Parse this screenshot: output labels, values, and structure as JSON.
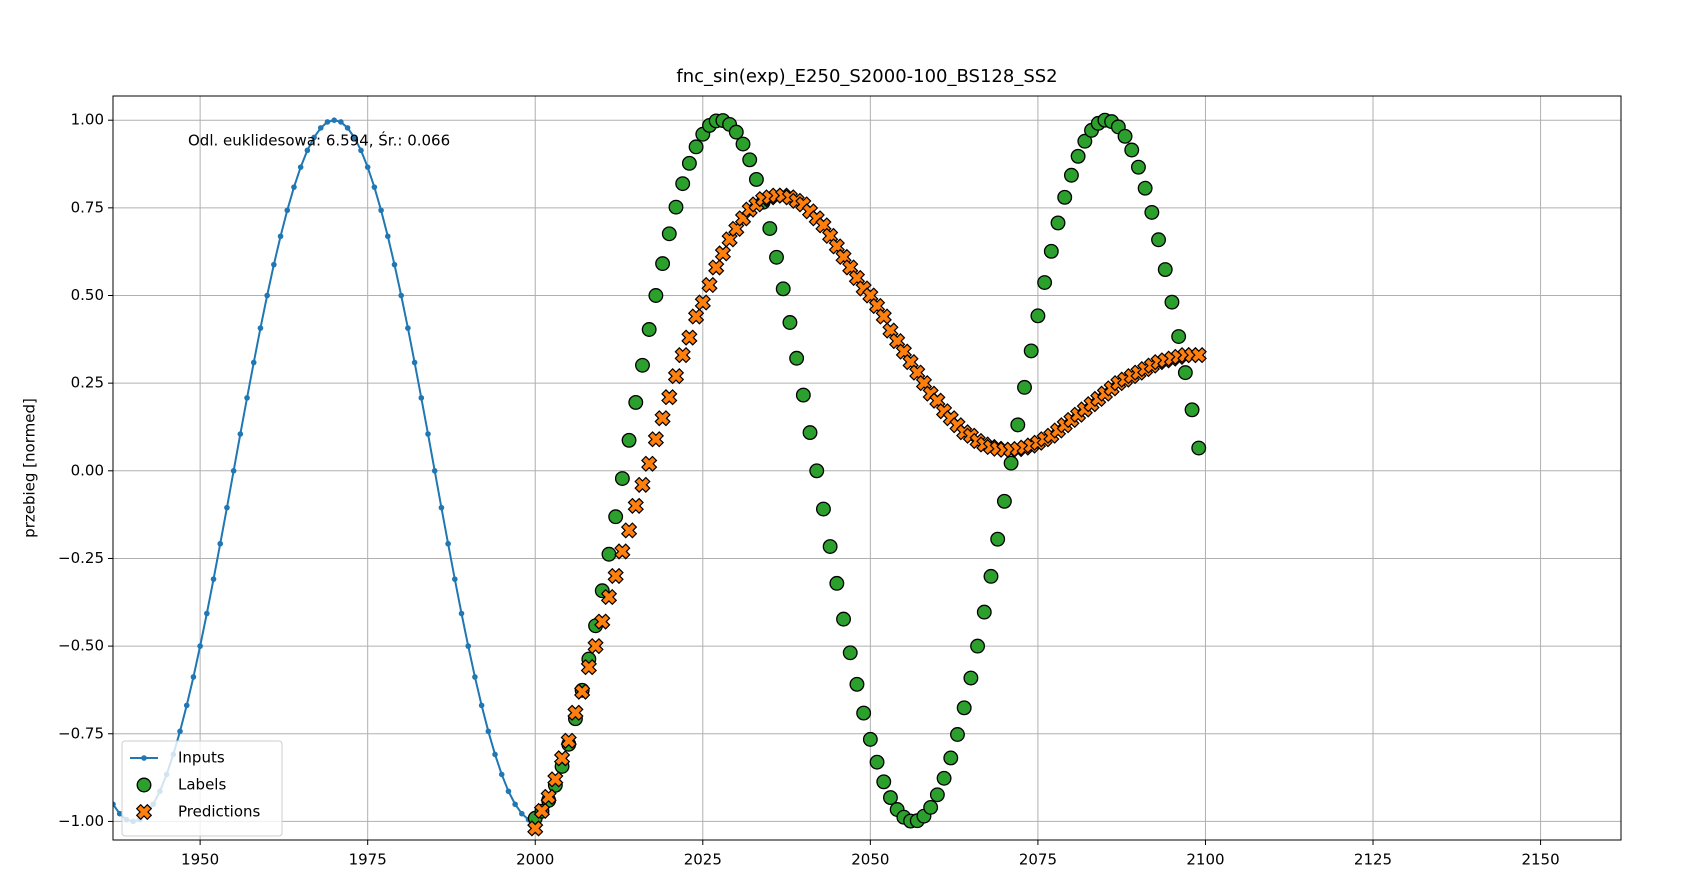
{
  "chart_data": {
    "type": "line",
    "title": "fnc_sin(exp)_E250_S2000-100_BS128_SS2",
    "ylabel": "przebieg [normed]",
    "annotation": "Odl. euklidesowa: 6.594, Śr.: 0.066",
    "xlim": [
      1937,
      2162
    ],
    "ylim": [
      -1.053,
      1.069
    ],
    "xticks": [
      1950,
      1975,
      2000,
      2025,
      2050,
      2075,
      2100,
      2125,
      2150
    ],
    "yticks": [
      {
        "value": -1,
        "label": "−1.00"
      },
      {
        "value": -0.75,
        "label": "−0.75"
      },
      {
        "value": -0.5,
        "label": "−0.50"
      },
      {
        "value": -0.25,
        "label": "−0.25"
      },
      {
        "value": 0,
        "label": "0.00"
      },
      {
        "value": 0.25,
        "label": "0.25"
      },
      {
        "value": 0.5,
        "label": "0.50"
      },
      {
        "value": 0.75,
        "label": "0.75"
      },
      {
        "value": 1,
        "label": "1.00"
      }
    ],
    "grid": true,
    "legend": "lower left",
    "series": [
      {
        "name": "Inputs",
        "color": "#1f77b4",
        "marker": "line",
        "x": [
          1937,
          1938,
          1939,
          1940,
          1941,
          1942,
          1943,
          1944,
          1945,
          1946,
          1947,
          1948,
          1949,
          1950,
          1951,
          1952,
          1953,
          1954,
          1955,
          1956,
          1957,
          1958,
          1959,
          1960,
          1961,
          1962,
          1963,
          1964,
          1965,
          1966,
          1967,
          1968,
          1969,
          1970,
          1971,
          1972,
          1973,
          1974,
          1975,
          1976,
          1977,
          1978,
          1979,
          1980,
          1981,
          1982,
          1983,
          1984,
          1985,
          1986,
          1987,
          1988,
          1989,
          1990,
          1991,
          1992,
          1993,
          1994,
          1995,
          1996,
          1997,
          1998,
          1999
        ],
        "values": [
          -0.951,
          -0.978,
          -0.995,
          -1,
          -0.995,
          -0.978,
          -0.951,
          -0.914,
          -0.866,
          -0.809,
          -0.743,
          -0.669,
          -0.588,
          -0.5,
          -0.407,
          -0.309,
          -0.208,
          -0.105,
          0,
          0.105,
          0.208,
          0.309,
          0.407,
          0.5,
          0.588,
          0.669,
          0.743,
          0.809,
          0.866,
          0.914,
          0.951,
          0.978,
          0.995,
          1,
          0.995,
          0.978,
          0.951,
          0.914,
          0.866,
          0.809,
          0.743,
          0.669,
          0.588,
          0.5,
          0.407,
          0.309,
          0.208,
          0.105,
          0,
          -0.105,
          -0.208,
          -0.309,
          -0.407,
          -0.5,
          -0.588,
          -0.669,
          -0.743,
          -0.809,
          -0.866,
          -0.914,
          -0.951,
          -0.978,
          -0.995
        ]
      },
      {
        "name": "Labels",
        "color": "#2ca02c",
        "marker": "circle",
        "x": [
          2000,
          2001,
          2002,
          2003,
          2004,
          2005,
          2006,
          2007,
          2008,
          2009,
          2010,
          2011,
          2012,
          2013,
          2014,
          2015,
          2016,
          2017,
          2018,
          2019,
          2020,
          2021,
          2022,
          2023,
          2024,
          2025,
          2026,
          2027,
          2028,
          2029,
          2030,
          2031,
          2032,
          2033,
          2034,
          2035,
          2036,
          2037,
          2038,
          2039,
          2040,
          2041,
          2042,
          2043,
          2044,
          2045,
          2046,
          2047,
          2048,
          2049,
          2050,
          2051,
          2052,
          2053,
          2054,
          2055,
          2056,
          2057,
          2058,
          2059,
          2060,
          2061,
          2062,
          2063,
          2064,
          2065,
          2066,
          2067,
          2068,
          2069,
          2070,
          2071,
          2072,
          2073,
          2074,
          2075,
          2076,
          2077,
          2078,
          2079,
          2080,
          2081,
          2082,
          2083,
          2084,
          2085,
          2086,
          2087,
          2088,
          2089,
          2090,
          2091,
          2092,
          2093,
          2094,
          2095,
          2096,
          2097,
          2098,
          2099
        ],
        "values": [
          -0.991,
          -0.971,
          -0.94,
          -0.897,
          -0.843,
          -0.78,
          -0.707,
          -0.626,
          -0.537,
          -0.442,
          -0.342,
          -0.238,
          -0.131,
          -0.022,
          0.087,
          0.195,
          0.301,
          0.403,
          0.5,
          0.591,
          0.676,
          0.752,
          0.819,
          0.877,
          0.924,
          0.96,
          0.985,
          0.998,
          0.999,
          0.988,
          0.966,
          0.932,
          0.887,
          0.831,
          0.766,
          0.691,
          0.609,
          0.519,
          0.423,
          0.321,
          0.216,
          0.109,
          0,
          -0.109,
          -0.216,
          -0.321,
          -0.423,
          -0.519,
          -0.609,
          -0.691,
          -0.766,
          -0.831,
          -0.887,
          -0.932,
          -0.966,
          -0.988,
          -0.999,
          -0.998,
          -0.985,
          -0.96,
          -0.924,
          -0.877,
          -0.819,
          -0.752,
          -0.676,
          -0.591,
          -0.5,
          -0.403,
          -0.301,
          -0.195,
          -0.087,
          0.022,
          0.131,
          0.238,
          0.342,
          0.442,
          0.537,
          0.626,
          0.707,
          0.78,
          0.843,
          0.897,
          0.94,
          0.971,
          0.991,
          1,
          0.996,
          0.981,
          0.954,
          0.915,
          0.866,
          0.806,
          0.737,
          0.659,
          0.574,
          0.481,
          0.383,
          0.28,
          0.174,
          0.065
        ]
      },
      {
        "name": "Predictions",
        "color": "#ff7f0e",
        "marker": "x",
        "x": [
          2000,
          2001,
          2002,
          2003,
          2004,
          2005,
          2006,
          2007,
          2008,
          2009,
          2010,
          2011,
          2012,
          2013,
          2014,
          2015,
          2016,
          2017,
          2018,
          2019,
          2020,
          2021,
          2022,
          2023,
          2024,
          2025,
          2026,
          2027,
          2028,
          2029,
          2030,
          2031,
          2032,
          2033,
          2034,
          2035,
          2036,
          2037,
          2038,
          2039,
          2040,
          2041,
          2042,
          2043,
          2044,
          2045,
          2046,
          2047,
          2048,
          2049,
          2050,
          2051,
          2052,
          2053,
          2054,
          2055,
          2056,
          2057,
          2058,
          2059,
          2060,
          2061,
          2062,
          2063,
          2064,
          2065,
          2066,
          2067,
          2068,
          2069,
          2070,
          2071,
          2072,
          2073,
          2074,
          2075,
          2076,
          2077,
          2078,
          2079,
          2080,
          2081,
          2082,
          2083,
          2084,
          2085,
          2086,
          2087,
          2088,
          2089,
          2090,
          2091,
          2092,
          2093,
          2094,
          2095,
          2096,
          2097,
          2098,
          2099
        ],
        "values": [
          -1.02,
          -0.97,
          -0.93,
          -0.88,
          -0.82,
          -0.77,
          -0.69,
          -0.63,
          -0.56,
          -0.5,
          -0.43,
          -0.36,
          -0.3,
          -0.23,
          -0.17,
          -0.1,
          -0.04,
          0.02,
          0.09,
          0.15,
          0.21,
          0.27,
          0.33,
          0.38,
          0.44,
          0.48,
          0.53,
          0.58,
          0.62,
          0.66,
          0.69,
          0.72,
          0.745,
          0.76,
          0.775,
          0.78,
          0.785,
          0.785,
          0.78,
          0.77,
          0.76,
          0.74,
          0.72,
          0.7,
          0.67,
          0.64,
          0.61,
          0.58,
          0.55,
          0.52,
          0.5,
          0.47,
          0.44,
          0.4,
          0.37,
          0.34,
          0.31,
          0.28,
          0.25,
          0.22,
          0.2,
          0.17,
          0.15,
          0.13,
          0.11,
          0.1,
          0.085,
          0.075,
          0.068,
          0.063,
          0.06,
          0.06,
          0.062,
          0.066,
          0.072,
          0.08,
          0.09,
          0.1,
          0.115,
          0.13,
          0.145,
          0.16,
          0.175,
          0.19,
          0.205,
          0.22,
          0.235,
          0.25,
          0.26,
          0.27,
          0.28,
          0.29,
          0.3,
          0.31,
          0.315,
          0.32,
          0.325,
          0.33,
          0.33,
          0.33
        ]
      }
    ]
  }
}
